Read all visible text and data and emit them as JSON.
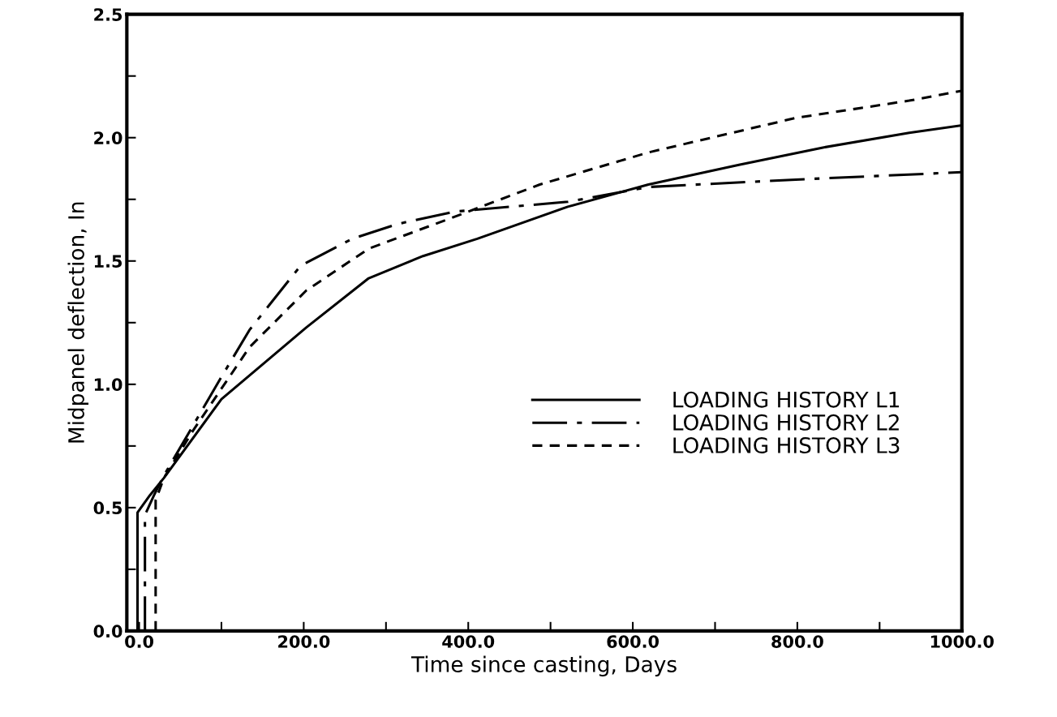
{
  "chart_data": {
    "type": "line",
    "xlabel": "Time since casting, Days",
    "ylabel": "Midpanel deflection, In",
    "xlim": [
      -15,
      1000
    ],
    "ylim": [
      0,
      2.5
    ],
    "xticks": [
      {
        "value": 0,
        "label": "0.0"
      },
      {
        "value": 100,
        "label": null
      },
      {
        "value": 200,
        "label": "200.0"
      },
      {
        "value": 300,
        "label": null
      },
      {
        "value": 400,
        "label": "400.0"
      },
      {
        "value": 500,
        "label": null
      },
      {
        "value": 600,
        "label": "600.0"
      },
      {
        "value": 700,
        "label": null
      },
      {
        "value": 800,
        "label": "800.0"
      },
      {
        "value": 900,
        "label": null
      },
      {
        "value": 1000,
        "label": "1000.0"
      }
    ],
    "yticks": [
      {
        "value": 0,
        "label": "0.0"
      },
      {
        "value": 0.25,
        "label": null
      },
      {
        "value": 0.5,
        "label": "0.5"
      },
      {
        "value": 0.75,
        "label": null
      },
      {
        "value": 1.0,
        "label": "1.0"
      },
      {
        "value": 1.25,
        "label": null
      },
      {
        "value": 1.5,
        "label": "1.5"
      },
      {
        "value": 1.75,
        "label": null
      },
      {
        "value": 2.0,
        "label": "2.0"
      },
      {
        "value": 2.25,
        "label": null
      },
      {
        "value": 2.5,
        "label": "2.5"
      }
    ],
    "grid": false,
    "legend": "bottom right",
    "marker": "none",
    "series": [
      {
        "name": "LOADING HISTORY L1",
        "color": "#000000",
        "line_style": "solid",
        "x": [
          -2,
          -2,
          13,
          30,
          100,
          203,
          279,
          345,
          411,
          521,
          619,
          729,
          831,
          936,
          1000
        ],
        "values": [
          0,
          0.48,
          0.55,
          0.62,
          0.94,
          1.23,
          1.43,
          1.52,
          1.59,
          1.72,
          1.81,
          1.89,
          1.96,
          2.02,
          2.05
        ]
      },
      {
        "name": "LOADING HISTORY L2",
        "color": "#000000",
        "line_style": "dashdot",
        "x": [
          7,
          7,
          18,
          30,
          100,
          134,
          196,
          259,
          314,
          383,
          521,
          619,
          798,
          1000
        ],
        "values": [
          0,
          0.47,
          0.55,
          0.63,
          1.03,
          1.22,
          1.48,
          1.59,
          1.65,
          1.7,
          1.74,
          1.8,
          1.83,
          1.86
        ]
      },
      {
        "name": "LOADING HISTORY L3",
        "color": "#000000",
        "line_style": "dashed",
        "x": [
          20,
          20,
          30,
          65,
          134,
          203,
          279,
          376,
          487,
          619,
          798,
          936,
          1000
        ],
        "values": [
          0,
          0.53,
          0.62,
          0.81,
          1.15,
          1.38,
          1.55,
          1.67,
          1.81,
          1.94,
          2.08,
          2.15,
          2.19
        ]
      }
    ]
  }
}
